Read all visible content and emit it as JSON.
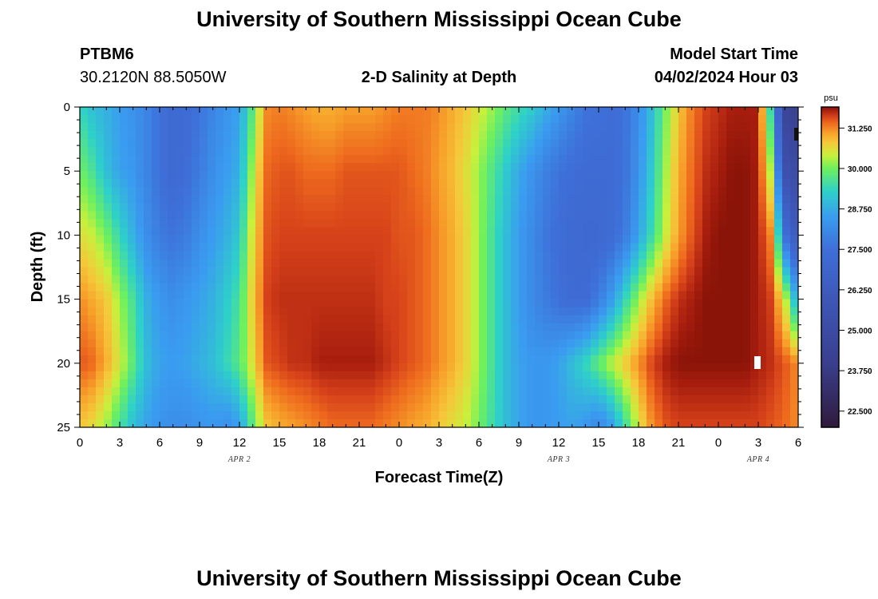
{
  "header": {
    "title": "University of Southern Mississippi Ocean Cube",
    "station_id": "PTBM6",
    "station_coords": "30.2120N  88.5050W",
    "plot_title": "2-D Salinity at Depth",
    "model_start_label": "Model Start Time",
    "model_start_value": "04/02/2024 Hour 03"
  },
  "footer": {
    "title": "University of Southern Mississippi Ocean Cube"
  },
  "chart_data": {
    "type": "heatmap",
    "title": "2-D Salinity at Depth",
    "xlabel": "Forecast Time(Z)",
    "ylabel": "Depth (ft)",
    "x_ticks": [
      "0",
      "3",
      "6",
      "9",
      "12",
      "15",
      "18",
      "21",
      "0",
      "3",
      "6",
      "9",
      "12",
      "15",
      "18",
      "21",
      "0",
      "3",
      "6"
    ],
    "x_tick_hours": [
      0,
      3,
      6,
      9,
      12,
      15,
      18,
      21,
      24,
      27,
      30,
      33,
      36,
      39,
      42,
      45,
      48,
      51,
      54
    ],
    "xlim_hours": [
      0,
      54
    ],
    "date_labels": [
      {
        "text": "APR 2",
        "hour": 12
      },
      {
        "text": "APR 3",
        "hour": 36
      },
      {
        "text": "APR 4",
        "hour": 51
      }
    ],
    "y_ticks": [
      "0",
      "5",
      "10",
      "15",
      "20",
      "25"
    ],
    "y_tick_values": [
      0,
      5,
      10,
      15,
      20,
      25
    ],
    "ylim_ft": [
      0,
      25
    ],
    "colorbar": {
      "unit": "psu",
      "min": 22.0,
      "max": 31.9,
      "ticks": [
        "22.500",
        "23.750",
        "25.000",
        "26.250",
        "27.500",
        "28.750",
        "30.000",
        "31.250"
      ],
      "tick_values": [
        22.5,
        23.75,
        25.0,
        26.25,
        27.5,
        28.75,
        30.0,
        31.25
      ],
      "stops": [
        {
          "v": 22.0,
          "c": "#301a3c"
        },
        {
          "v": 24.0,
          "c": "#3a3f8e"
        },
        {
          "v": 26.0,
          "c": "#3e57b8"
        },
        {
          "v": 27.5,
          "c": "#3e6fd8"
        },
        {
          "v": 28.5,
          "c": "#3a9cf0"
        },
        {
          "v": 29.3,
          "c": "#2ed1c8"
        },
        {
          "v": 30.0,
          "c": "#6ef05e"
        },
        {
          "v": 30.4,
          "c": "#c8f03c"
        },
        {
          "v": 30.8,
          "c": "#f5c83a"
        },
        {
          "v": 31.1,
          "c": "#f7a02a"
        },
        {
          "v": 31.4,
          "c": "#ee6a1e"
        },
        {
          "v": 31.6,
          "c": "#d6421a"
        },
        {
          "v": 31.8,
          "c": "#a81e0e"
        },
        {
          "v": 31.9,
          "c": "#8a1408"
        }
      ]
    },
    "salinity_grid": {
      "depths_ft": [
        0,
        5,
        10,
        15,
        20,
        25
      ],
      "hours": [
        0,
        1,
        2,
        3,
        4,
        5,
        6,
        7,
        8,
        9,
        10,
        11,
        12,
        13,
        14,
        15,
        16,
        17,
        18,
        19,
        20,
        21,
        22,
        23,
        24,
        25,
        26,
        27,
        28,
        29,
        30,
        31,
        32,
        33,
        34,
        35,
        36,
        37,
        38,
        39,
        40,
        41,
        42,
        43,
        44,
        45,
        46,
        47,
        48,
        49,
        50,
        51,
        52,
        53,
        54
      ],
      "values": [
        [
          29.4,
          29.0,
          28.8,
          28.5,
          28.3,
          28.0,
          27.5,
          27.2,
          27.3,
          27.6,
          28.0,
          28.3,
          28.6,
          29.8,
          31.2,
          31.3,
          31.2,
          31.1,
          31.0,
          31.0,
          31.1,
          31.1,
          31.1,
          31.2,
          31.3,
          31.3,
          31.3,
          31.2,
          31.0,
          30.8,
          30.5,
          30.2,
          29.8,
          29.5,
          29.2,
          28.8,
          28.4,
          28.0,
          27.6,
          27.5,
          27.4,
          27.6,
          28.2,
          29.0,
          30.0,
          30.8,
          31.3,
          31.6,
          31.7,
          31.8,
          31.8,
          31.8,
          29.2,
          24.5,
          24.0
        ],
        [
          30.0,
          29.6,
          29.0,
          28.6,
          28.4,
          28.0,
          27.5,
          27.2,
          27.4,
          27.8,
          28.2,
          28.5,
          28.8,
          30.3,
          31.4,
          31.5,
          31.5,
          31.4,
          31.4,
          31.4,
          31.5,
          31.5,
          31.5,
          31.5,
          31.5,
          31.4,
          31.3,
          31.1,
          30.9,
          30.6,
          30.2,
          29.7,
          29.2,
          28.7,
          28.3,
          27.9,
          27.6,
          27.4,
          27.3,
          27.3,
          27.3,
          27.6,
          28.3,
          29.2,
          30.2,
          31.0,
          31.4,
          31.7,
          31.8,
          31.9,
          31.9,
          31.8,
          30.2,
          25.5,
          25.0
        ],
        [
          30.6,
          30.4,
          30.0,
          29.4,
          28.8,
          28.2,
          27.8,
          27.6,
          27.8,
          28.2,
          28.5,
          28.8,
          29.2,
          30.6,
          31.5,
          31.6,
          31.6,
          31.6,
          31.6,
          31.6,
          31.6,
          31.6,
          31.6,
          31.6,
          31.5,
          31.5,
          31.4,
          31.2,
          31.0,
          30.7,
          30.2,
          29.6,
          29.0,
          28.5,
          28.1,
          27.7,
          27.4,
          27.2,
          27.1,
          27.1,
          27.3,
          27.8,
          28.6,
          29.5,
          30.4,
          31.1,
          31.5,
          31.8,
          31.9,
          31.9,
          31.9,
          31.8,
          31.2,
          27.5,
          26.0
        ],
        [
          31.2,
          31.0,
          30.8,
          30.2,
          29.6,
          28.8,
          28.4,
          28.2,
          28.4,
          28.6,
          28.8,
          29.2,
          29.6,
          30.8,
          31.6,
          31.7,
          31.7,
          31.7,
          31.7,
          31.7,
          31.7,
          31.7,
          31.7,
          31.6,
          31.6,
          31.5,
          31.4,
          31.2,
          31.0,
          30.7,
          30.2,
          29.6,
          29.0,
          28.5,
          28.1,
          27.8,
          27.5,
          27.3,
          27.3,
          27.8,
          28.5,
          29.4,
          30.2,
          30.9,
          31.4,
          31.7,
          31.8,
          31.9,
          31.9,
          31.9,
          31.9,
          31.8,
          31.6,
          30.5,
          28.5
        ],
        [
          31.5,
          31.4,
          31.0,
          30.5,
          29.8,
          29.0,
          28.6,
          28.5,
          28.6,
          28.8,
          29.0,
          29.4,
          29.8,
          30.6,
          31.5,
          31.6,
          31.7,
          31.7,
          31.8,
          31.8,
          31.8,
          31.8,
          31.8,
          31.7,
          31.6,
          31.5,
          31.4,
          31.2,
          31.0,
          30.7,
          30.2,
          29.6,
          29.0,
          28.6,
          28.4,
          28.4,
          28.6,
          29.0,
          29.4,
          29.9,
          30.4,
          30.8,
          31.2,
          31.6,
          31.8,
          31.9,
          31.9,
          31.9,
          31.9,
          31.9,
          31.9,
          31.8,
          31.7,
          31.5,
          31.2
        ],
        [
          30.8,
          30.6,
          30.2,
          29.6,
          29.0,
          28.6,
          28.3,
          28.2,
          28.2,
          28.3,
          28.4,
          28.2,
          28.5,
          29.8,
          30.8,
          31.0,
          31.1,
          31.2,
          31.3,
          31.4,
          31.4,
          31.4,
          31.4,
          31.3,
          31.2,
          31.1,
          31.0,
          30.8,
          30.6,
          30.4,
          30.0,
          29.5,
          29.0,
          28.6,
          28.4,
          28.4,
          28.5,
          28.6,
          28.4,
          28.0,
          28.5,
          29.5,
          30.5,
          31.2,
          31.5,
          31.6,
          31.6,
          31.6,
          31.6,
          31.6,
          31.6,
          31.6,
          31.5,
          31.4,
          31.2
        ]
      ]
    }
  }
}
